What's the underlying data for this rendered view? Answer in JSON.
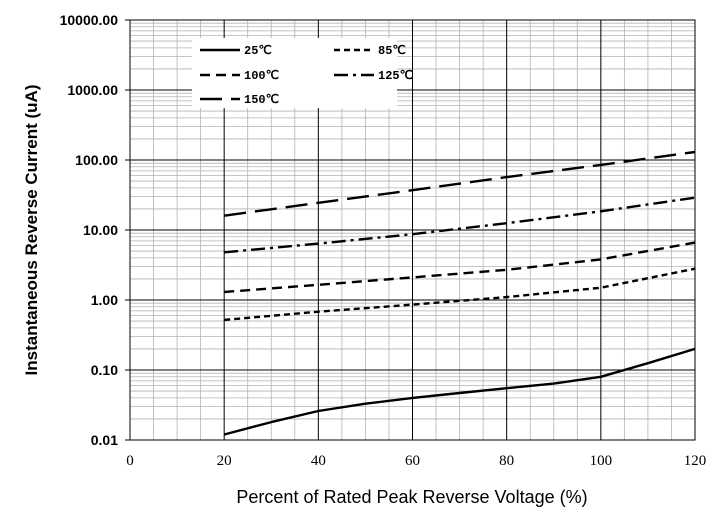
{
  "chart_data": {
    "type": "line",
    "title": "",
    "xlabel": "Percent of  Rated Peak Reverse Voltage (%)",
    "ylabel": "Instantaneous Reverse Current (uA)",
    "xlim": [
      0,
      120
    ],
    "ylim": [
      0.01,
      10000
    ],
    "yscale": "log",
    "grid": true,
    "legend_position": "top-left",
    "xticks": [
      0,
      20,
      40,
      60,
      80,
      100,
      120
    ],
    "xtick_labels": [
      "0",
      "20",
      "40",
      "60",
      "80",
      "100",
      "120"
    ],
    "yticks": [
      0.01,
      0.1,
      1,
      10,
      100,
      1000,
      10000
    ],
    "ytick_labels": [
      "0.01",
      "0.10",
      "1.00",
      "10.00",
      "100.00",
      "1000.00",
      "10000.00"
    ],
    "series": [
      {
        "name": "25℃",
        "dash": "solid",
        "x": [
          20,
          30,
          40,
          50,
          60,
          70,
          80,
          90,
          100,
          110,
          120
        ],
        "y": [
          0.012,
          0.018,
          0.026,
          0.033,
          0.04,
          0.047,
          0.055,
          0.064,
          0.08,
          0.125,
          0.2
        ]
      },
      {
        "name": "85℃",
        "dash": "short",
        "x": [
          20,
          40,
          60,
          80,
          100,
          120
        ],
        "y": [
          0.52,
          0.68,
          0.86,
          1.1,
          1.5,
          2.8
        ]
      },
      {
        "name": "100℃",
        "dash": "medium",
        "x": [
          20,
          40,
          60,
          80,
          100,
          120
        ],
        "y": [
          1.3,
          1.65,
          2.1,
          2.7,
          3.8,
          6.6
        ]
      },
      {
        "name": "125℃",
        "dash": "dashdot",
        "x": [
          20,
          40,
          60,
          80,
          100,
          120
        ],
        "y": [
          4.8,
          6.4,
          8.7,
          12.5,
          18.5,
          29
        ]
      },
      {
        "name": "150℃",
        "dash": "long",
        "x": [
          20,
          40,
          60,
          80,
          100,
          120
        ],
        "y": [
          16,
          24.5,
          37,
          57,
          85,
          130
        ]
      }
    ]
  }
}
